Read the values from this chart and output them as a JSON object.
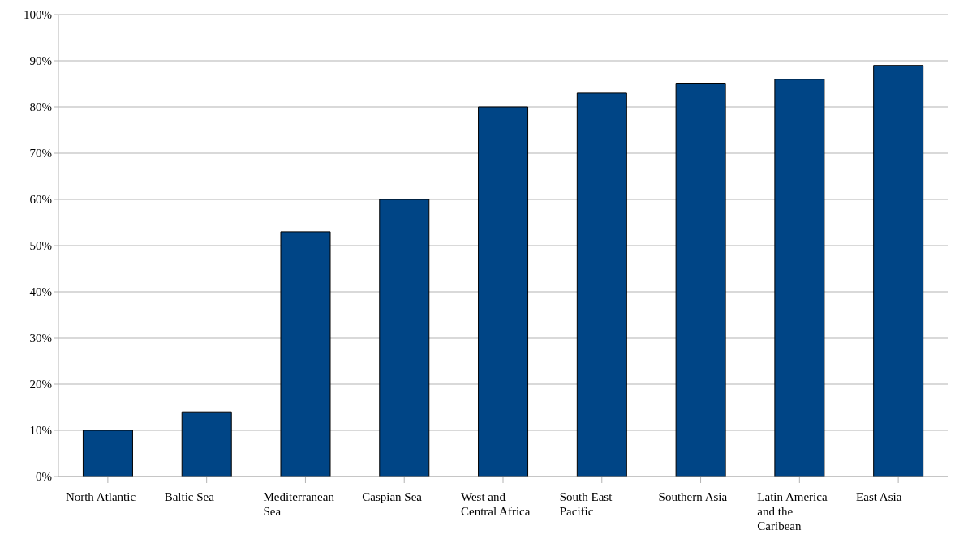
{
  "chart_data": {
    "type": "bar",
    "categories": [
      "North Atlantic",
      "Baltic Sea",
      "Mediterranean Sea",
      "Caspian Sea",
      "West and Central Africa",
      "South East Pacific",
      "Southern Asia",
      "Latin America and the Caribean",
      "East Asia"
    ],
    "values": [
      10,
      14,
      53,
      60,
      80,
      83,
      85,
      86,
      89
    ],
    "color": "#004586",
    "ylim": [
      0,
      100
    ],
    "yticks": [
      {
        "value": 0,
        "label": "0%"
      },
      {
        "value": 10,
        "label": "10%"
      },
      {
        "value": 20,
        "label": "20%"
      },
      {
        "value": 30,
        "label": "30%"
      },
      {
        "value": 40,
        "label": "40%"
      },
      {
        "value": 50,
        "label": "50%"
      },
      {
        "value": 60,
        "label": "60%"
      },
      {
        "value": 70,
        "label": "70%"
      },
      {
        "value": 80,
        "label": "80%"
      },
      {
        "value": 90,
        "label": "90%"
      },
      {
        "value": 100,
        "label": "100%"
      }
    ],
    "grid": "y",
    "legend": false
  }
}
